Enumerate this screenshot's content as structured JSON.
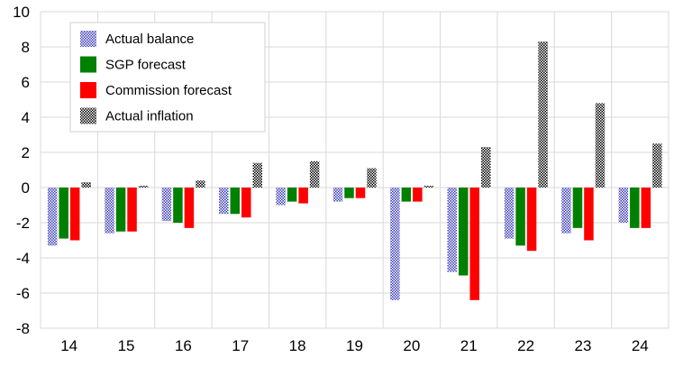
{
  "chart_data": {
    "type": "bar",
    "title": "",
    "xlabel": "",
    "ylabel": "",
    "categories": [
      "14",
      "15",
      "16",
      "17",
      "18",
      "19",
      "20",
      "21",
      "22",
      "23",
      "24"
    ],
    "ylim": [
      -8,
      10
    ],
    "yticks": [
      -8,
      -6,
      -4,
      -2,
      0,
      2,
      4,
      6,
      8,
      10
    ],
    "grid": true,
    "legend_position": "top-left",
    "series": [
      {
        "name": "Actual balance",
        "pattern": "blue-dotted",
        "color": "#3a3ab8",
        "values": [
          -3.3,
          -2.6,
          -1.9,
          -1.5,
          -1.0,
          -0.8,
          -6.4,
          -4.8,
          -2.9,
          -2.6,
          -2.0
        ]
      },
      {
        "name": "SGP forecast",
        "pattern": "solid",
        "color": "#008000",
        "values": [
          -2.9,
          -2.5,
          -2.0,
          -1.5,
          -0.8,
          -0.6,
          -0.8,
          -5.0,
          -3.3,
          -2.3,
          -2.3
        ]
      },
      {
        "name": "Commission forecast",
        "pattern": "solid",
        "color": "#ff0000",
        "values": [
          -3.0,
          -2.5,
          -2.3,
          -1.7,
          -0.9,
          -0.6,
          -0.8,
          -6.4,
          -3.6,
          -3.0,
          -2.3
        ]
      },
      {
        "name": "Actual inflation",
        "pattern": "black-dotted",
        "color": "#000000",
        "values": [
          0.3,
          0.1,
          0.4,
          1.4,
          1.5,
          1.1,
          0.1,
          2.3,
          8.3,
          4.8,
          2.5
        ]
      }
    ]
  }
}
